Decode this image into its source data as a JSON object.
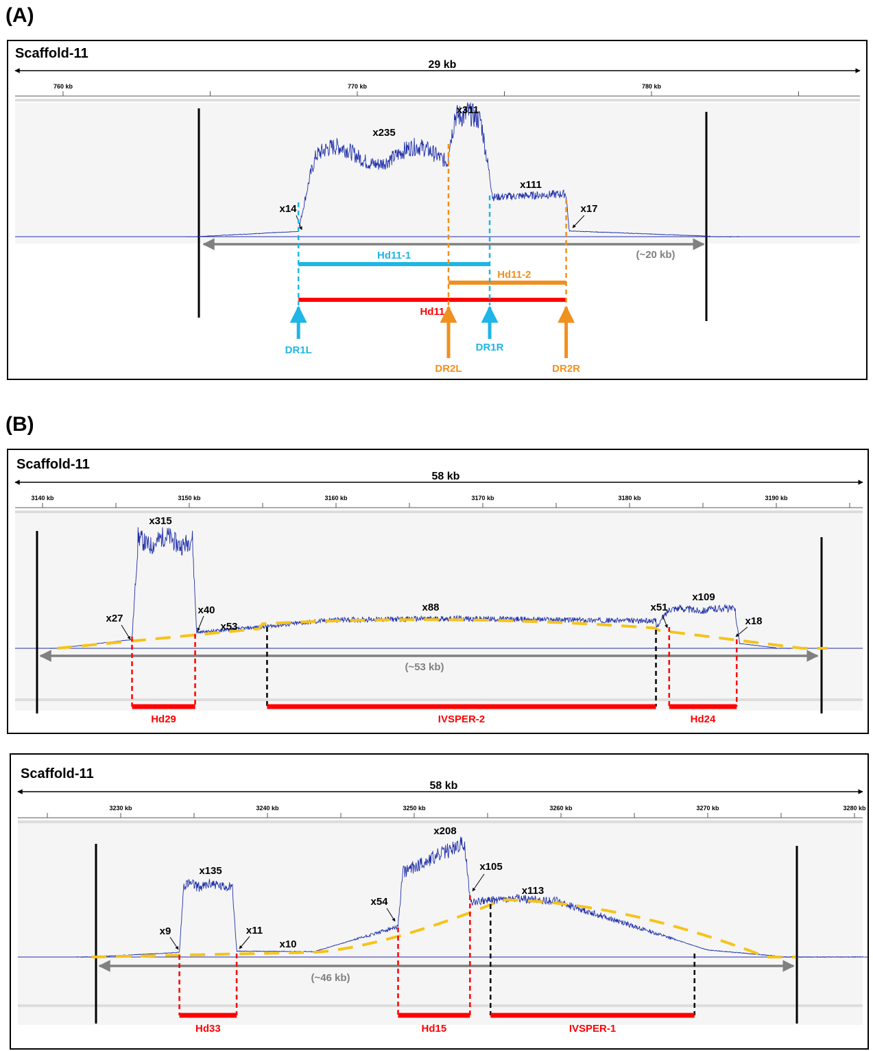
{
  "panels": [
    {
      "letter": "(A)",
      "scaffold": "Scaffold-11",
      "span": "29 kb",
      "ticks": [
        {
          "label": "760 kb",
          "pos": 760
        },
        {
          "label": "770 kb",
          "pos": 770
        },
        {
          "label": "780 kb",
          "pos": 780
        }
      ],
      "minor_ticks": [
        765,
        775,
        785
      ],
      "region": "(~20 kb)",
      "coverage_labels": [
        {
          "text": "x14",
          "pos": 767.0,
          "cov": 14
        },
        {
          "text": "x235",
          "pos": 770.9,
          "cov": 235
        },
        {
          "text": "x311",
          "pos": 773.6,
          "cov": 311
        },
        {
          "text": "x111",
          "pos": 777.1,
          "cov": 111
        },
        {
          "text": "x17",
          "pos": 779.3,
          "cov": 17
        }
      ],
      "segments": [
        {
          "name": "Hd11-1",
          "start": 768.0,
          "end": 774.5,
          "color": "#1fb5e6"
        },
        {
          "name": "Hd11-2",
          "start": 773.1,
          "end": 777.1,
          "color": "#f0901e"
        },
        {
          "name": "Hd11",
          "start": 768.0,
          "end": 777.1,
          "color": "#ff0000"
        }
      ],
      "breakpoints": [
        {
          "name": "DR1L",
          "pos": 768.0,
          "color": "#1fb5e6"
        },
        {
          "name": "DR2L",
          "pos": 773.1,
          "color": "#f0901e"
        },
        {
          "name": "DR1R",
          "pos": 774.5,
          "color": "#1fb5e6"
        },
        {
          "name": "DR2R",
          "pos": 777.1,
          "color": "#f0901e"
        }
      ],
      "colors": {
        "coverage": "#1f2fa8",
        "cyan": "#1fb5e6",
        "orange": "#f0901e",
        "red": "#ff0000",
        "gray": "#808080"
      }
    },
    {
      "letter": "(B)",
      "scaffold": "Scaffold-11",
      "span": "58 kb",
      "ticks": [
        {
          "label": "3140 kb",
          "pos": 3140
        },
        {
          "label": "3150 kb",
          "pos": 3150
        },
        {
          "label": "3160 kb",
          "pos": 3160
        },
        {
          "label": "3170 kb",
          "pos": 3170
        },
        {
          "label": "3180 kb",
          "pos": 3180
        },
        {
          "label": "3190 kb",
          "pos": 3190
        }
      ],
      "minor_ticks": [
        3145,
        3155,
        3165,
        3175,
        3185,
        3195
      ],
      "region": "(~53 kb)",
      "coverage_labels": [
        {
          "text": "x27",
          "pos": 3145.0,
          "cov": 27
        },
        {
          "text": "x315",
          "pos": 3148.0,
          "cov": 315
        },
        {
          "text": "x40",
          "pos": 3151.3,
          "cov": 40
        },
        {
          "text": "x53",
          "pos": 3152.7,
          "cov": 53
        },
        {
          "text": "x88",
          "pos": 3166.9,
          "cov": 88
        },
        {
          "text": "x51",
          "pos": 3181.2,
          "cov": 51
        },
        {
          "text": "x109",
          "pos": 3184.8,
          "cov": 109
        },
        {
          "text": "x18",
          "pos": 3188.0,
          "cov": 18
        }
      ],
      "segments": [
        {
          "name": "Hd29",
          "start": 3146.1,
          "end": 3150.4,
          "color": "#ff0000"
        },
        {
          "name": "IVSPER-2",
          "start": 3155.3,
          "end": 3181.8,
          "color": "#ff0000"
        },
        {
          "name": "Hd24",
          "start": 3182.7,
          "end": 3187.3,
          "color": "#ff0000"
        }
      ]
    },
    {
      "letter": "",
      "scaffold": "Scaffold-11",
      "span": "58 kb",
      "ticks": [
        {
          "label": "3230 kb",
          "pos": 3230
        },
        {
          "label": "3240 kb",
          "pos": 3240
        },
        {
          "label": "3250 kb",
          "pos": 3250
        },
        {
          "label": "3260 kb",
          "pos": 3260
        },
        {
          "label": "3270 kb",
          "pos": 3270
        },
        {
          "label": "3280 kb",
          "pos": 3280
        }
      ],
      "minor_ticks": [
        3225,
        3235,
        3245,
        3255,
        3265,
        3275
      ],
      "region": "(~46 kb)",
      "coverage_labels": [
        {
          "text": "x9",
          "pos": 3233.0,
          "cov": 9
        },
        {
          "text": "x135",
          "pos": 3236.0,
          "cov": 135
        },
        {
          "text": "x11",
          "pos": 3238.6,
          "cov": 11
        },
        {
          "text": "x10",
          "pos": 3241.5,
          "cov": 10
        },
        {
          "text": "x54",
          "pos": 3247.3,
          "cov": 54
        },
        {
          "text": "x208",
          "pos": 3252.2,
          "cov": 208
        },
        {
          "text": "x105",
          "pos": 3255.3,
          "cov": 105
        },
        {
          "text": "x113",
          "pos": 3258.2,
          "cov": 113
        }
      ],
      "segments": [
        {
          "name": "Hd33",
          "start": 3234.0,
          "end": 3237.9,
          "color": "#ff0000"
        },
        {
          "name": "Hd15",
          "start": 3248.9,
          "end": 3253.8,
          "color": "#ff0000"
        },
        {
          "name": "IVSPER-1",
          "start": 3255.2,
          "end": 3269.1,
          "color": "#ff0000"
        }
      ]
    }
  ]
}
